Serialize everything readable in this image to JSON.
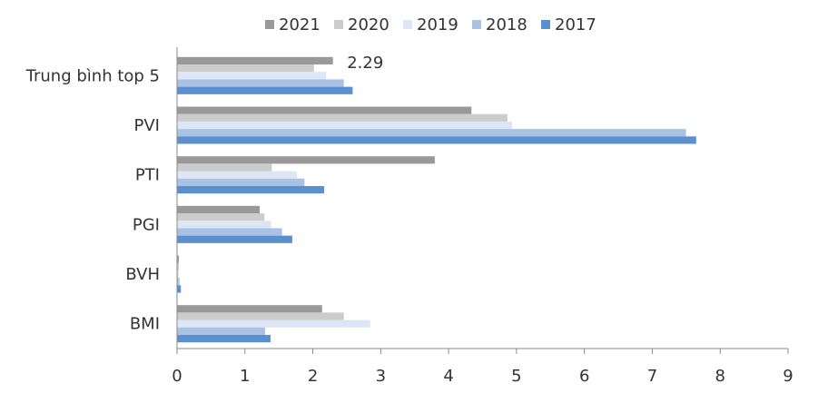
{
  "chart_data": {
    "type": "bar",
    "orientation": "horizontal",
    "categories": [
      "Trung bình top 5",
      "PVI",
      "PTI",
      "PGI",
      "BVH",
      "BMI"
    ],
    "series": [
      {
        "name": "2021",
        "color": "#999999",
        "values": [
          2.29,
          4.33,
          3.79,
          1.21,
          0.02,
          2.13
        ]
      },
      {
        "name": "2020",
        "color": "#cccccc",
        "values": [
          2.01,
          4.86,
          1.39,
          1.28,
          0.02,
          2.45
        ]
      },
      {
        "name": "2019",
        "color": "#dde6f5",
        "values": [
          2.19,
          4.93,
          1.76,
          1.38,
          0.02,
          2.84
        ]
      },
      {
        "name": "2018",
        "color": "#a9c2e4",
        "values": [
          2.45,
          7.49,
          1.87,
          1.54,
          0.03,
          1.29
        ]
      },
      {
        "name": "2017",
        "color": "#5b8fcf",
        "values": [
          2.58,
          7.64,
          2.16,
          1.69,
          0.05,
          1.37
        ]
      }
    ],
    "legend_order": [
      "2021",
      "2020",
      "2019",
      "2018",
      "2017"
    ],
    "legend_position": "top",
    "xlim": [
      0,
      9
    ],
    "xticks": [
      "0",
      "1",
      "2",
      "3",
      "4",
      "5",
      "6",
      "7",
      "8",
      "9"
    ],
    "annotations": [
      {
        "text": "2.29",
        "category": "Trung bình top 5",
        "series": "2021"
      }
    ],
    "grid": false
  }
}
